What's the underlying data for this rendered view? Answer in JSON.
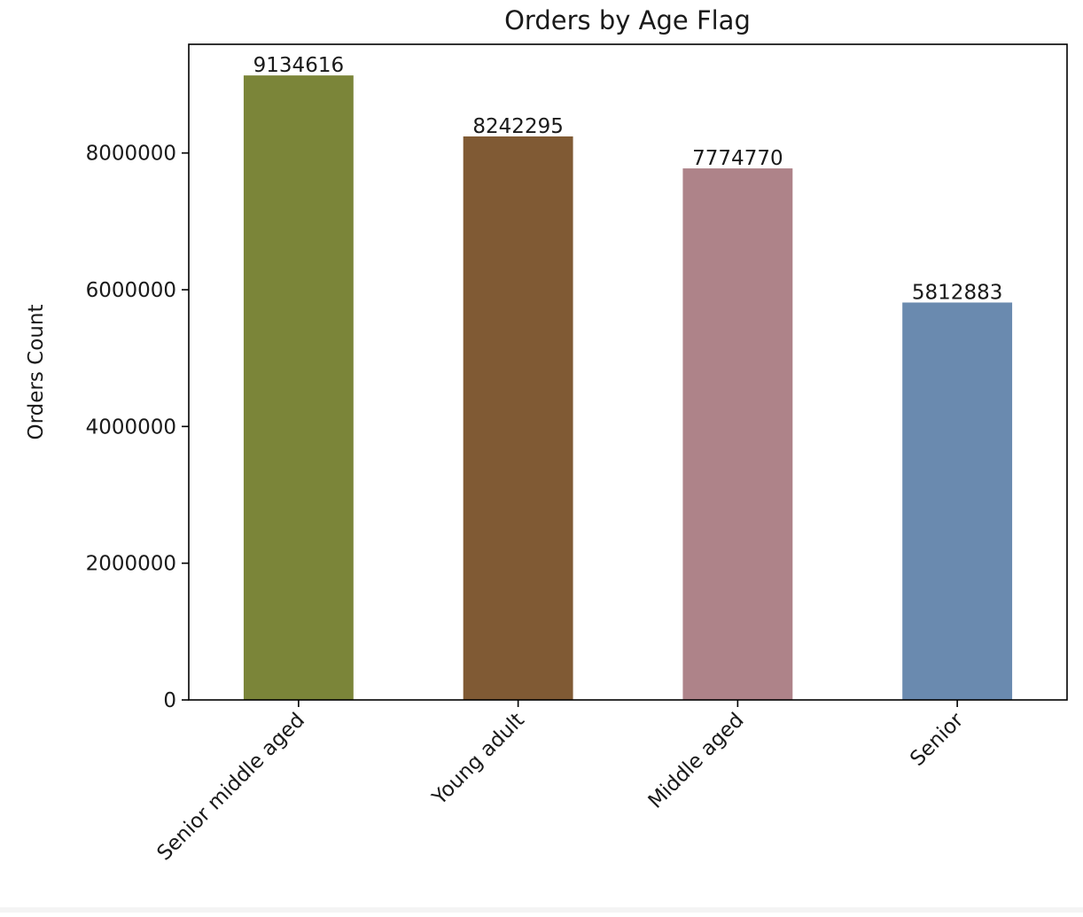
{
  "chart_data": {
    "type": "bar",
    "title": "Orders by Age Flag",
    "xlabel": "",
    "ylabel": "Orders Count",
    "categories": [
      "Senior middle aged",
      "Young adult",
      "Middle aged",
      "Senior"
    ],
    "values": [
      9134616,
      8242295,
      7774770,
      5812883
    ],
    "data_labels": [
      "9134616",
      "8242295",
      "7774770",
      "5812883"
    ],
    "colors": [
      "#7b8539",
      "#805a34",
      "#ae8389",
      "#6a8aaf"
    ],
    "ylim": [
      0,
      9590000
    ],
    "yticks": [
      0,
      2000000,
      4000000,
      6000000,
      8000000
    ],
    "ytick_labels": [
      "0",
      "2000000",
      "4000000",
      "6000000",
      "8000000"
    ],
    "grid": false,
    "legend": "none",
    "xtick_rotation": 45
  }
}
